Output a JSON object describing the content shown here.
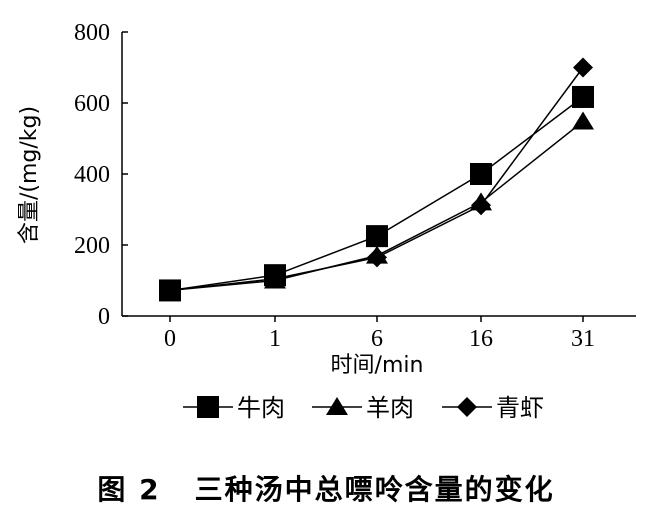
{
  "chart_data": {
    "type": "line",
    "categories": [
      "0",
      "1",
      "6",
      "16",
      "31"
    ],
    "series": [
      {
        "name": "牛肉",
        "marker": "square",
        "values": [
          72,
          115,
          225,
          400,
          617
        ]
      },
      {
        "name": "羊肉",
        "marker": "triangle",
        "values": [
          72,
          100,
          170,
          320,
          548
        ]
      },
      {
        "name": "青虾",
        "marker": "diamond",
        "values": [
          72,
          105,
          165,
          312,
          700
        ]
      }
    ],
    "xlabel": "时间/min",
    "ylabel": "含量/(mg/kg)",
    "ylim": [
      0,
      800
    ],
    "yticks": [
      "0",
      "200",
      "400",
      "600",
      "800"
    ],
    "grid": false,
    "legend_position": "bottom"
  },
  "caption": {
    "figure_number": "图 2",
    "text": "三种汤中总嘌呤含量的变化"
  },
  "colors": {
    "line": "#000000",
    "background": "#ffffff"
  }
}
